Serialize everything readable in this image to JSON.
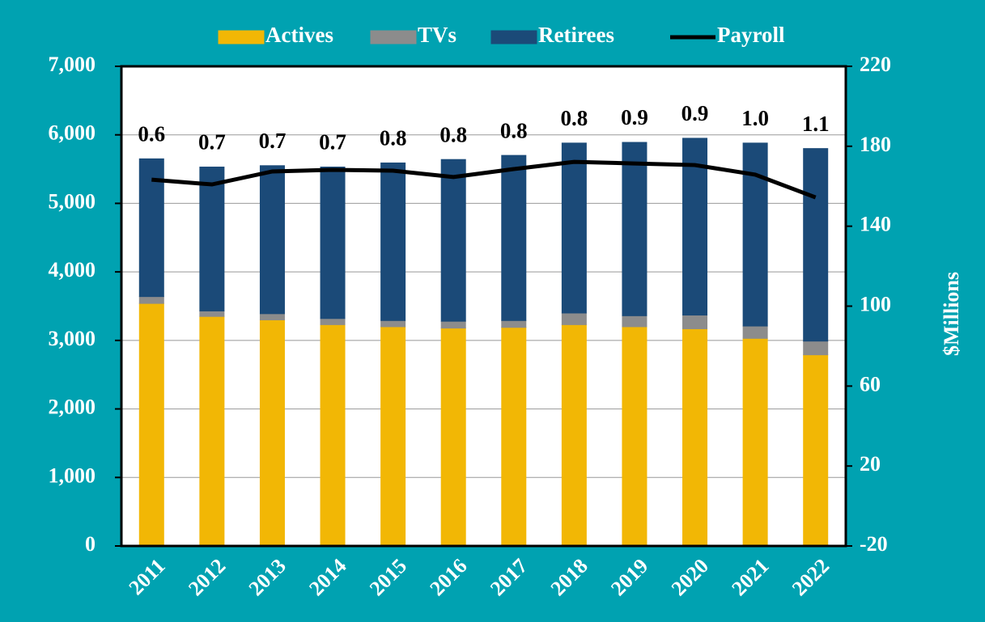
{
  "chart_data": {
    "type": "bar",
    "categories": [
      "2011",
      "2012",
      "2013",
      "2014",
      "2015",
      "2016",
      "2017",
      "2018",
      "2019",
      "2020",
      "2021",
      "2022"
    ],
    "series": [
      {
        "name": "Actives",
        "color": "#f2b705",
        "values": [
          3540,
          3350,
          3300,
          3230,
          3200,
          3180,
          3190,
          3230,
          3200,
          3170,
          3030,
          2790
        ]
      },
      {
        "name": "TVs",
        "color": "#8c8c8c",
        "values": [
          100,
          80,
          90,
          90,
          90,
          100,
          100,
          170,
          160,
          200,
          180,
          200
        ]
      },
      {
        "name": "Retirees",
        "color": "#1b4a78",
        "values": [
          2010,
          2100,
          2160,
          2210,
          2300,
          2360,
          2410,
          2480,
          2530,
          2580,
          2670,
          2810
        ]
      },
      {
        "name": "Payroll",
        "color": "#000000",
        "type": "line",
        "axis": "y2",
        "values": [
          163.3,
          160.9,
          167.4,
          168.2,
          167.8,
          164.6,
          168.6,
          172.2,
          171.4,
          170.6,
          165.8,
          154.4
        ]
      }
    ],
    "annotations": [
      "0.6",
      "0.7",
      "0.7",
      "0.7",
      "0.8",
      "0.8",
      "0.8",
      "0.8",
      "0.9",
      "0.9",
      "1.0",
      "1.1"
    ],
    "y2_label": "$Millions",
    "ylim": [
      0,
      7000
    ],
    "yticks": [
      0,
      {
        "value": 1000,
        "label": "1,000"
      },
      {
        "value": 2000,
        "label": "2,000"
      },
      {
        "value": 3000,
        "label": "3,000"
      },
      {
        "value": 4000,
        "label": "4,000"
      },
      {
        "value": 5000,
        "label": "5,000"
      },
      {
        "value": 6000,
        "label": "6,000"
      },
      {
        "value": 7000,
        "label": "7,000"
      }
    ],
    "y2lim": [
      -20,
      220
    ],
    "y2ticks": [
      -20,
      20,
      60,
      100,
      140,
      180,
      220
    ],
    "grid": true,
    "legend": "top"
  }
}
